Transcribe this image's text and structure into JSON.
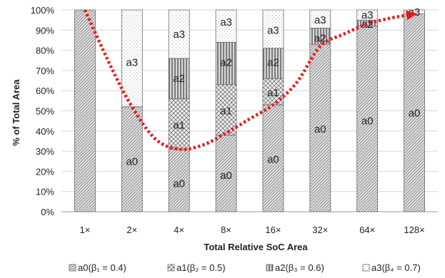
{
  "chart_data": {
    "type": "bar",
    "stacked": true,
    "xlabel": "Total Relative SoC Area",
    "ylabel": "% of Total Area",
    "ylim": [
      0,
      100
    ],
    "yticks": [
      "0%",
      "10%",
      "20%",
      "30%",
      "40%",
      "50%",
      "60%",
      "70%",
      "80%",
      "90%",
      "100%"
    ],
    "categories": [
      "1×",
      "2×",
      "4×",
      "8×",
      "16×",
      "32×",
      "64×",
      "128×"
    ],
    "series": [
      {
        "name": "a0",
        "legend": "a0(β₁ = 0.4)",
        "values": [
          100,
          52,
          31,
          38,
          53,
          83,
          92,
          98
        ],
        "pattern": "dense-diagonal"
      },
      {
        "name": "a1",
        "legend": "a1(β₂ = 0.5)",
        "values": [
          0,
          0,
          25,
          25,
          13,
          0,
          0,
          0
        ],
        "pattern": "crosshatch"
      },
      {
        "name": "a2",
        "legend": "a2(β₃ = 0.6)",
        "values": [
          0,
          0,
          20,
          21,
          15,
          8,
          3,
          0
        ],
        "pattern": "vertical-lines"
      },
      {
        "name": "a3",
        "legend": "a3(β₄ = 0.7)",
        "values": [
          0,
          48,
          24,
          16,
          19,
          9,
          5,
          2
        ],
        "pattern": "dots"
      }
    ],
    "segment_labels": [
      {
        "category": "1×",
        "series": "a0",
        "text": "",
        "at": 50
      },
      {
        "category": "2×",
        "series": "a0",
        "text": "a0",
        "at": 25
      },
      {
        "category": "2×",
        "series": "a3",
        "text": "a3",
        "at": 74
      },
      {
        "category": "4×",
        "series": "a0",
        "text": "a0",
        "at": 14
      },
      {
        "category": "4×",
        "series": "a1",
        "text": "a1",
        "at": 43
      },
      {
        "category": "4×",
        "series": "a2",
        "text": "a2",
        "at": 66
      },
      {
        "category": "4×",
        "series": "a3",
        "text": "a3",
        "at": 88
      },
      {
        "category": "8×",
        "series": "a0",
        "text": "a0",
        "at": 18
      },
      {
        "category": "8×",
        "series": "a1",
        "text": "a1",
        "at": 50
      },
      {
        "category": "8×",
        "series": "a2",
        "text": "a2",
        "at": 74
      },
      {
        "category": "8×",
        "series": "a3",
        "text": "a3",
        "at": 94
      },
      {
        "category": "16×",
        "series": "a0",
        "text": "a0",
        "at": 26
      },
      {
        "category": "16×",
        "series": "a1",
        "text": "a1",
        "at": 59
      },
      {
        "category": "16×",
        "series": "a2",
        "text": "a2",
        "at": 74
      },
      {
        "category": "16×",
        "series": "a3",
        "text": "a3",
        "at": 90
      },
      {
        "category": "32×",
        "series": "a0",
        "text": "a0",
        "at": 41
      },
      {
        "category": "32×",
        "series": "a2",
        "text": "a2",
        "at": 86
      },
      {
        "category": "32×",
        "series": "a3",
        "text": "a3",
        "at": 95
      },
      {
        "category": "64×",
        "series": "a0",
        "text": "a0",
        "at": 45
      },
      {
        "category": "64×",
        "series": "a2",
        "text": "a2",
        "at": 93
      },
      {
        "category": "64×",
        "series": "a3",
        "text": "a3",
        "at": 97.5
      },
      {
        "category": "128×",
        "series": "a0",
        "text": "a0",
        "at": 49
      },
      {
        "category": "128×",
        "series": "a3",
        "text": "a3",
        "at": 99
      }
    ],
    "trend_curve": {
      "color": "#e8191b",
      "style": "dotted",
      "points": [
        [
          0,
          100
        ],
        [
          0.55,
          72
        ],
        [
          1,
          52
        ],
        [
          1.5,
          36
        ],
        [
          2,
          31
        ],
        [
          2.5,
          33
        ],
        [
          3,
          39
        ],
        [
          3.5,
          46
        ],
        [
          4,
          53
        ],
        [
          4.5,
          64
        ],
        [
          5,
          82
        ],
        [
          5.5,
          88
        ],
        [
          6,
          93
        ],
        [
          6.5,
          96
        ],
        [
          7,
          98
        ]
      ]
    },
    "legend_position": "bottom",
    "grid": "horizontal"
  }
}
